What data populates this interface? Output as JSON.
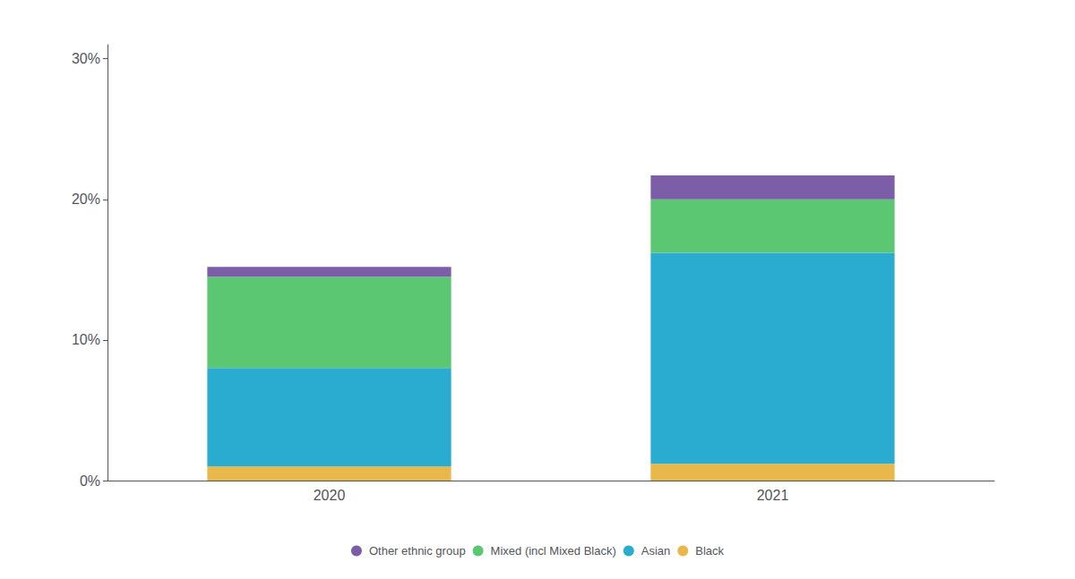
{
  "chart_data": {
    "type": "bar",
    "stacked": true,
    "categories": [
      "2020",
      "2021"
    ],
    "series": [
      {
        "name": "Black",
        "color": "#E8B84B",
        "values": [
          0.01,
          0.012
        ]
      },
      {
        "name": "Asian",
        "color": "#2AACD1",
        "values": [
          0.07,
          0.15
        ]
      },
      {
        "name": "Mixed (incl Mixed Black)",
        "color": "#5BC773",
        "values": [
          0.065,
          0.038
        ]
      },
      {
        "name": "Other ethnic group",
        "color": "#7B5EA7",
        "values": [
          0.007,
          0.017
        ]
      }
    ],
    "ylim": [
      0,
      0.31
    ],
    "yticks": [
      {
        "value": 0,
        "label": "0%"
      },
      {
        "value": 0.1,
        "label": "10%"
      },
      {
        "value": 0.2,
        "label": "20%"
      },
      {
        "value": 0.3,
        "label": "30%"
      }
    ],
    "grid": false,
    "legend": "bottom"
  }
}
